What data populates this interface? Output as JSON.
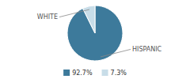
{
  "chart_data": {
    "type": "pie",
    "categories": [
      "HISPANIC",
      "WHITE"
    ],
    "values": [
      92.7,
      7.3
    ],
    "value_labels": [
      "92.7%",
      "7.3%"
    ],
    "colors": [
      "#3d7a9b",
      "#c8dde8"
    ],
    "legend": "bottom"
  }
}
